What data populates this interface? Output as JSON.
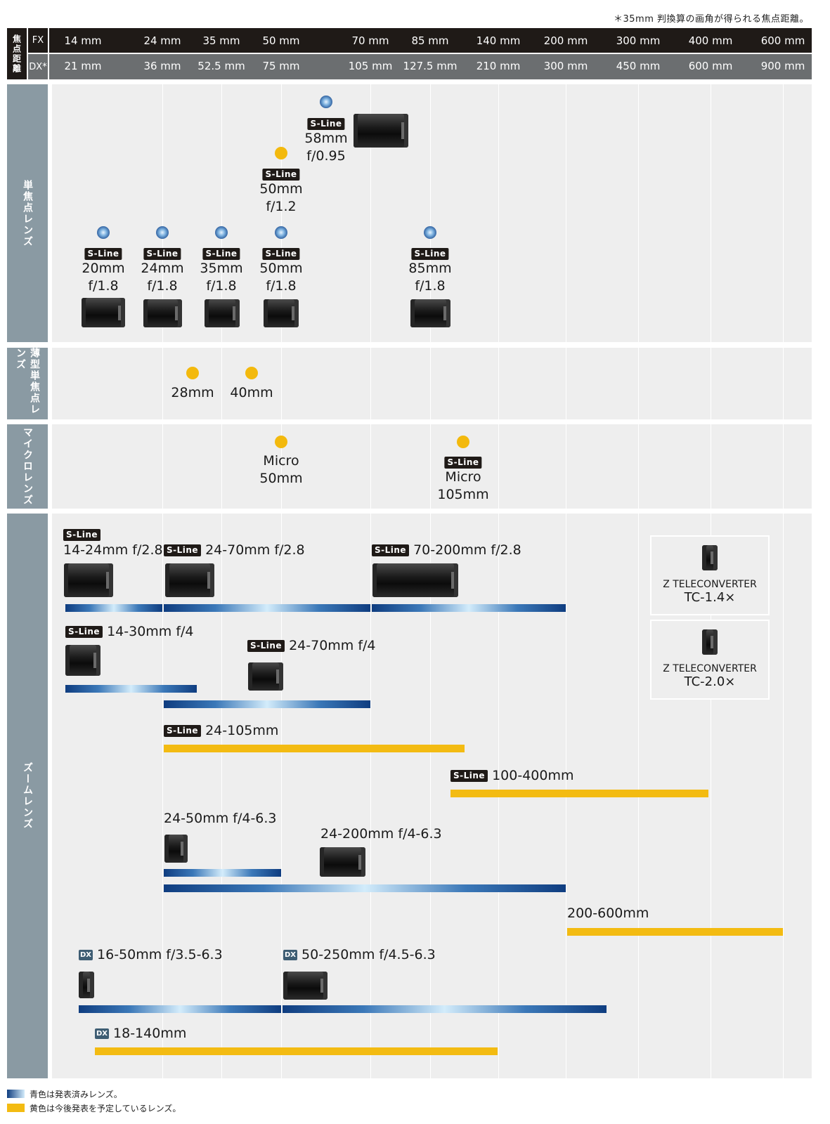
{
  "top_note": "＊35mm 判換算の画角が得られる焦点距離。",
  "header": {
    "side_label": "焦点距離",
    "fx_label": "FX",
    "dx_label": "DX*",
    "fx": [
      "14 mm",
      "24 mm",
      "35 mm",
      "50 mm",
      "70 mm",
      "85 mm",
      "140 mm",
      "200 mm",
      "300 mm",
      "400 mm",
      "600 mm"
    ],
    "dx": [
      "21 mm",
      "36 mm",
      "52.5 mm",
      "75 mm",
      "105 mm",
      "127.5 mm",
      "210 mm",
      "300 mm",
      "450 mm",
      "600 mm",
      "900 mm"
    ]
  },
  "sections": {
    "prime": "単焦点レンズ",
    "compact": "薄型単焦点レンズ",
    "micro": "マイクロレンズ",
    "zoom": "ズームレンズ"
  },
  "badge": "S-Line",
  "dx_badge": "DX",
  "primes": [
    {
      "l1": "58mm",
      "l2": "f/0.95",
      "status": "released",
      "sline": true
    },
    {
      "l1": "50mm",
      "l2": "f/1.2",
      "status": "planned",
      "sline": true
    },
    {
      "l1": "20mm",
      "l2": "f/1.8",
      "status": "released",
      "sline": true
    },
    {
      "l1": "24mm",
      "l2": "f/1.8",
      "status": "released",
      "sline": true
    },
    {
      "l1": "35mm",
      "l2": "f/1.8",
      "status": "released",
      "sline": true
    },
    {
      "l1": "50mm",
      "l2": "f/1.8",
      "status": "released",
      "sline": true
    },
    {
      "l1": "85mm",
      "l2": "f/1.8",
      "status": "released",
      "sline": true
    }
  ],
  "compact": [
    {
      "label": "28mm",
      "status": "planned"
    },
    {
      "label": "40mm",
      "status": "planned"
    }
  ],
  "micro": [
    {
      "l1": "Micro",
      "l2": "50mm",
      "status": "planned",
      "sline": false
    },
    {
      "l1": "Micro",
      "l2": "105mm",
      "status": "planned",
      "sline": true
    }
  ],
  "zooms": [
    {
      "label": "14-24mm f/2.8",
      "status": "released"
    },
    {
      "label": "24-70mm f/2.8",
      "status": "released"
    },
    {
      "label": "70-200mm f/2.8",
      "status": "released"
    },
    {
      "label": "14-30mm f/4",
      "status": "released"
    },
    {
      "label": "24-70mm f/4",
      "status": "released"
    },
    {
      "label": "24-105mm",
      "status": "planned"
    },
    {
      "label": "100-400mm",
      "status": "planned"
    },
    {
      "label": "24-50mm f/4-6.3",
      "status": "released"
    },
    {
      "label": "24-200mm f/4-6.3",
      "status": "released"
    },
    {
      "label": "200-600mm",
      "status": "planned"
    },
    {
      "label": "16-50mm f/3.5-6.3",
      "status": "released"
    },
    {
      "label": "50-250mm f/4.5-6.3",
      "status": "released"
    },
    {
      "label": "18-140mm",
      "status": "planned"
    }
  ],
  "teleconverters": [
    {
      "name": "Z TELECONVERTER",
      "model": "TC-1.4×"
    },
    {
      "name": "Z TELECONVERTER",
      "model": "TC-2.0×"
    }
  ],
  "legend": {
    "released": "青色は発表済みレンズ。",
    "planned": "黄色は今後発表を予定しているレンズ。"
  },
  "colors": {
    "released": "#1f5aa0",
    "planned": "#f3bb12",
    "header": "#1f1a17",
    "side": "#8a9aa3"
  }
}
